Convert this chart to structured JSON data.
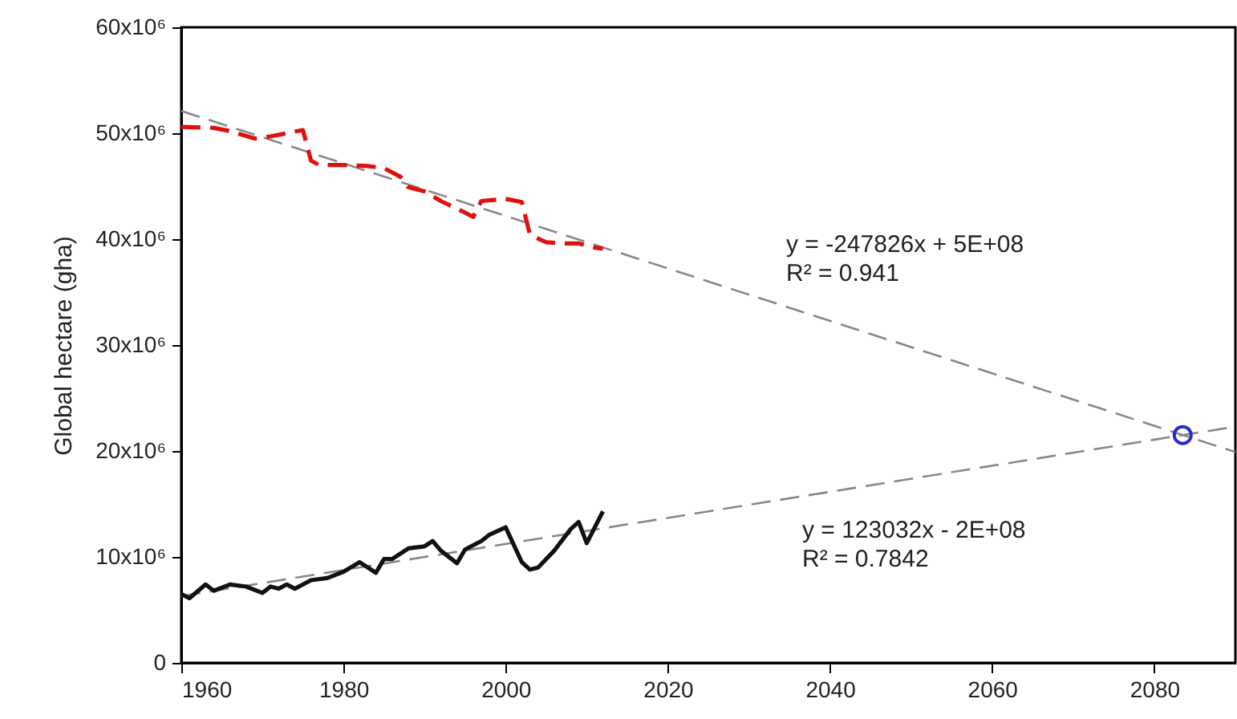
{
  "chart_data": {
    "type": "line",
    "ylabel": "Global hectare (gha)",
    "annotations": [
      "y = -247826x + 5E+08\nR² = 0.941",
      "y = 123032x - 2E+08\nR² = 0.7842"
    ],
    "xlim": [
      1960,
      2090
    ],
    "xticks": [
      1960,
      1980,
      2000,
      2020,
      2040,
      2060,
      2080
    ],
    "ylim": [
      0,
      60000000
    ],
    "yticks": [
      {
        "value": 0,
        "label": "0"
      },
      {
        "value": 10000000,
        "label": "10x10⁶"
      },
      {
        "value": 20000000,
        "label": "20x10⁶"
      },
      {
        "value": 30000000,
        "label": "30x10⁶"
      },
      {
        "value": 40000000,
        "label": "40x10⁶"
      },
      {
        "value": 50000000,
        "label": "50x10⁶"
      },
      {
        "value": 60000000,
        "label": "60x10⁶"
      }
    ],
    "grid": false,
    "series": [
      {
        "color": "#888888",
        "line_style": "dashed",
        "x": [
          1960,
          2090
        ],
        "values": [
          52100000,
          19900000
        ]
      },
      {
        "color": "#888888",
        "line_style": "dashed",
        "x": [
          1960,
          2090
        ],
        "values": [
          6300000,
          22300000
        ]
      },
      {
        "color": "#e01010",
        "line_style": "dashed",
        "x": [
          1960,
          1964,
          1966,
          1969,
          1971,
          1973,
          1975,
          1976,
          1977,
          1980,
          1983,
          1985,
          1987,
          1988,
          1990,
          1992,
          1995,
          1996,
          1997,
          2000,
          2002,
          2003,
          2005,
          2007,
          2009,
          2011,
          2012
        ],
        "values": [
          50600000,
          50500000,
          50200000,
          49500000,
          49700000,
          50000000,
          50300000,
          47400000,
          47000000,
          47000000,
          46900000,
          46700000,
          45900000,
          44900000,
          44500000,
          43600000,
          42500000,
          42100000,
          43600000,
          43800000,
          43500000,
          40400000,
          39700000,
          39600000,
          39600000,
          39200000,
          39100000
        ]
      },
      {
        "color": "#111111",
        "line_style": "solid",
        "x": [
          1960,
          1961,
          1963,
          1964,
          1966,
          1968,
          1970,
          1971,
          1972,
          1973,
          1974,
          1976,
          1978,
          1980,
          1982,
          1984,
          1985,
          1986,
          1988,
          1990,
          1991,
          1992,
          1994,
          1995,
          1997,
          1998,
          2000,
          2002,
          2003,
          2004,
          2006,
          2008,
          2009,
          2010,
          2012
        ],
        "values": [
          6500000,
          6100000,
          7400000,
          6800000,
          7400000,
          7200000,
          6600000,
          7200000,
          7000000,
          7400000,
          7000000,
          7800000,
          8000000,
          8600000,
          9500000,
          8500000,
          9800000,
          9800000,
          10800000,
          11000000,
          11500000,
          10600000,
          9400000,
          10700000,
          11500000,
          12100000,
          12800000,
          9500000,
          8800000,
          9000000,
          10600000,
          12600000,
          13300000,
          11300000,
          14300000
        ]
      },
      {
        "type": "scatter",
        "color": "#2a2acc",
        "marker": "circle",
        "x": [
          2083.5
        ],
        "values": [
          21500000
        ]
      }
    ]
  }
}
